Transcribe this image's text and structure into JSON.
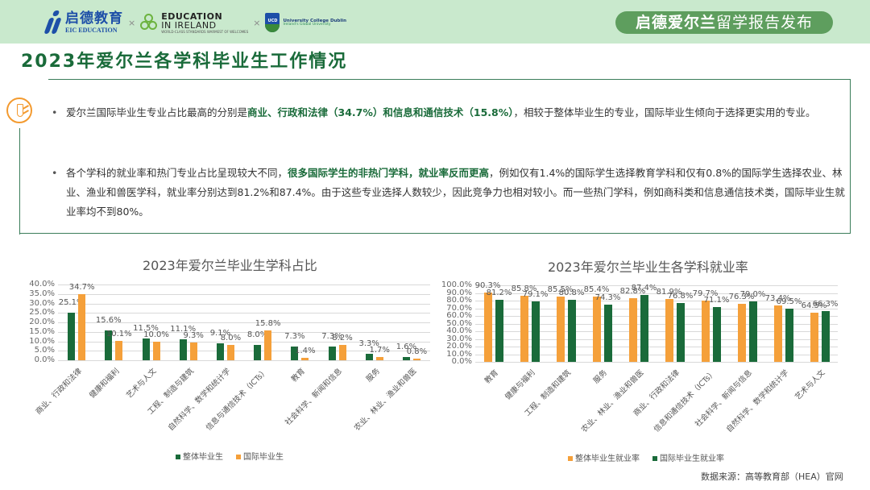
{
  "header": {
    "logos": {
      "eic_cn": "启德教育",
      "eic_en": "EIC EDUCATION",
      "separator": "×",
      "eii_line1": "EDUCATION",
      "eii_line2": "IN IRELAND",
      "eii_tagline": "WORLD-CLASS STANDARDS WARMEST OF WELCOMES",
      "ucd_badge": "UCD",
      "ucd_name": "University College Dublin",
      "ucd_tagline": "Ireland's Global University"
    },
    "report_pill": {
      "bold_part": "启德爱尔兰",
      "rest": "留学报告发布"
    }
  },
  "page_title": "2023年爱尔兰各学科毕业生工作情况",
  "summary": {
    "icon": "tie-icon",
    "bullet1": {
      "pre": "爱尔兰国际毕业生专业占比最高的分别是",
      "highlight": "商业、行政和法律（34.7%）和信息和通信技术（15.8%）",
      "post": "，相较于整体毕业生的专业，国际毕业生倾向于选择更实用的专业。"
    },
    "bullet2": {
      "pre": "各个学科的就业率和热门专业占比呈现较大不同，",
      "highlight": "很多国际学生的非热门学科，就业率反而更高",
      "post": "，例如仅有1.4%的国际学生选择教育学科和仅有0.8%的国际学生选择农业、林业、渔业和兽医学科，就业率分别达到81.2%和87.4%。由于这些专业选择人数较少，因此竞争力也相对较小。而一些热门学科，例如商科类和信息通信技术类，国际毕业生就业率均不到80%。"
    }
  },
  "colors": {
    "green": "#1a6b3a",
    "orange": "#f5a03a",
    "header_bg": "#c9e9cd",
    "pill_bg": "#5e9e5e"
  },
  "chart_data": [
    {
      "type": "bar",
      "title": "2023年爱尔兰毕业生学科占比",
      "categories": [
        "商业、行政和法律",
        "健康和福利",
        "艺术与人文",
        "工程、制造与建筑",
        "自然科学、数学和统计学",
        "信息与通信技术（ICTs）",
        "教育",
        "社会科学、新闻和信息",
        "服务",
        "农业、林业、渔业和兽医"
      ],
      "series": [
        {
          "name": "整体毕业生",
          "color": "#1a6b3a",
          "values": [
            25.1,
            15.6,
            11.5,
            11.1,
            9.1,
            8.0,
            7.3,
            7.3,
            3.3,
            1.6
          ]
        },
        {
          "name": "国际毕业生",
          "color": "#f5a03a",
          "values": [
            34.7,
            10.1,
            10.0,
            9.3,
            8.0,
            15.8,
            1.4,
            8.2,
            1.7,
            0.8
          ]
        }
      ],
      "yticks": [
        "40.0%",
        "35.0%",
        "30.0%",
        "25.0%",
        "20.0%",
        "15.0%",
        "10.0%",
        "5.0%",
        "0.0%"
      ],
      "ylim": [
        0,
        40
      ],
      "xlabel": "",
      "ylabel": "",
      "grid": true,
      "legend_position": "bottom"
    },
    {
      "type": "bar",
      "title": "2023年爱尔兰毕业生各学科就业率",
      "categories": [
        "教育",
        "健康与福利",
        "工程、制造和建筑",
        "服务",
        "农业、林业、渔业和兽医",
        "商业、行政和法律",
        "信息和通信技术（ICTs）",
        "社会科学、新闻与信息",
        "自然科学、数学和统计学",
        "艺术与人文"
      ],
      "series": [
        {
          "name": "整体毕业生就业率",
          "color": "#f5a03a",
          "values": [
            90.3,
            85.8,
            85.5,
            85.4,
            82.8,
            81.9,
            79.7,
            76.3,
            73.4,
            64.5
          ]
        },
        {
          "name": "国际毕业生就业率",
          "color": "#1a6b3a",
          "values": [
            81.2,
            79.1,
            80.8,
            74.3,
            87.4,
            76.8,
            71.1,
            79.0,
            69.5,
            66.3
          ]
        }
      ],
      "yticks": [
        "100.0%",
        "90.0%",
        "80.0%",
        "70.0%",
        "60.0%",
        "50.0%",
        "40.0%",
        "30.0%",
        "20.0%",
        "10.0%",
        "0.0%"
      ],
      "ylim": [
        0,
        100
      ],
      "xlabel": "",
      "ylabel": "",
      "grid": true,
      "legend_position": "bottom"
    }
  ],
  "source": "数据来源：高等教育部（HEA）官网"
}
